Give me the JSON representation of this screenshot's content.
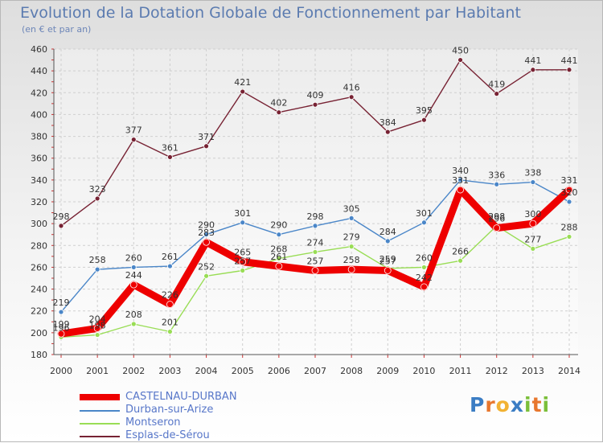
{
  "title": "Evolution de la Dotation Globale de Fonctionnement par Habitant",
  "subtitle": "(en € et par an)",
  "logo": "Proxiti",
  "chart_data": {
    "type": "line",
    "title": "Evolution de la Dotation Globale de Fonctionnement par Habitant",
    "ylabel": "(en € et par an)",
    "xlabel": "",
    "x": [
      "2000",
      "2001",
      "2002",
      "2003",
      "2004",
      "2005",
      "2006",
      "2007",
      "2008",
      "2009",
      "2010",
      "2011",
      "2012",
      "2013",
      "2014"
    ],
    "ylim": [
      180,
      460
    ],
    "yticks": [
      180,
      200,
      220,
      240,
      260,
      280,
      300,
      320,
      340,
      360,
      380,
      400,
      420,
      440,
      460
    ],
    "grid": true,
    "legend_position": "bottom-left",
    "series": [
      {
        "name": "CASTELNAU-DURBAN",
        "color": "#ee0000",
        "values": [
          199,
          204,
          244,
          226,
          283,
          265,
          261,
          257,
          258,
          257,
          242,
          331,
          296,
          300,
          331
        ]
      },
      {
        "name": "Durban-sur-Arize",
        "color": "#4a86c8",
        "values": [
          219,
          258,
          260,
          261,
          290,
          301,
          290,
          298,
          305,
          284,
          301,
          340,
          336,
          338,
          320
        ]
      },
      {
        "name": "Montseron",
        "color": "#99dd55",
        "values": [
          196,
          198,
          208,
          201,
          252,
          257,
          268,
          274,
          279,
          259,
          260,
          266,
          298,
          277,
          288
        ]
      },
      {
        "name": "Esplas-de-Sérou",
        "color": "#772233",
        "values": [
          298,
          323,
          377,
          361,
          371,
          421,
          402,
          409,
          416,
          384,
          395,
          450,
          419,
          441,
          441
        ]
      }
    ]
  }
}
